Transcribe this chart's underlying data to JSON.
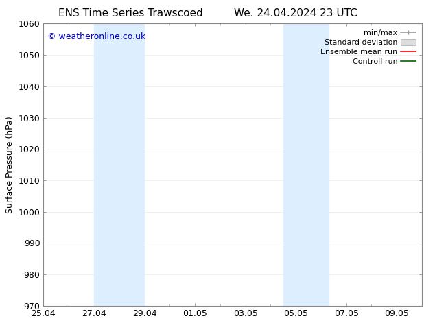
{
  "title_left": "ENS Time Series Trawscoed",
  "title_right": "We. 24.04.2024 23 UTC",
  "ylabel": "Surface Pressure (hPa)",
  "ylim": [
    970,
    1060
  ],
  "ytick_interval": 10,
  "xtick_labels": [
    "25.04",
    "27.04",
    "29.04",
    "01.05",
    "03.05",
    "05.05",
    "07.05",
    "09.05"
  ],
  "shaded_band1_color": "#ddeeff",
  "shaded_band2_color": "#ddeeff",
  "copyright_text": "© weatheronline.co.uk",
  "copyright_color": "#0000cc",
  "legend_labels": [
    "min/max",
    "Standard deviation",
    "Ensemble mean run",
    "Controll run"
  ],
  "legend_colors": [
    "#aaaaaa",
    "#cccccc",
    "#ff0000",
    "#008000"
  ],
  "background_color": "#ffffff",
  "grid_color": "#cccccc",
  "spine_color": "#888888",
  "title_fontsize": 11,
  "ylabel_fontsize": 9,
  "tick_fontsize": 9,
  "legend_fontsize": 8,
  "copyright_fontsize": 9
}
